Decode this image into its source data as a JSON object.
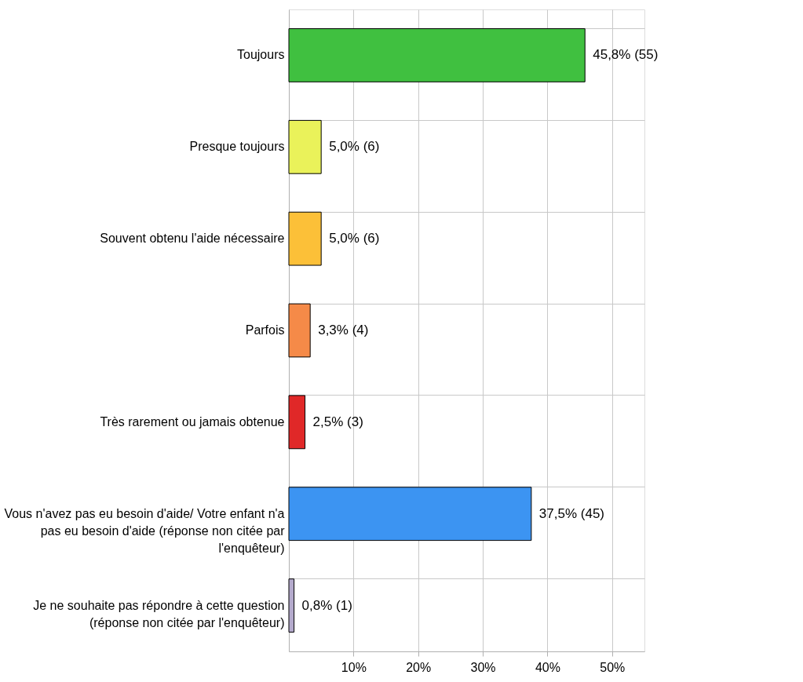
{
  "chart_data": {
    "type": "bar",
    "orientation": "horizontal",
    "categories": [
      "Toujours",
      "Presque toujours",
      "Souvent obtenu l'aide nécessaire",
      "Parfois",
      "Très rarement ou jamais obtenue",
      "Vous n'avez pas eu besoin d'aide/ Votre enfant n'a pas eu besoin d'aide (réponse non citée par l'enquêteur)",
      "Je ne souhaite pas répondre à cette question (réponse non citée par l'enquêteur)"
    ],
    "values": [
      45.8,
      5.0,
      5.0,
      3.3,
      2.5,
      37.5,
      0.8
    ],
    "colors": [
      "#40c040",
      "#eaf25a",
      "#fcc038",
      "#f58a48",
      "#e02828",
      "#3c94f2",
      "#b4aacc"
    ],
    "value_labels": [
      "45,8% (55)",
      "5,0% (6)",
      "5,0% (6)",
      "3,3% (4)",
      "2,5% (3)",
      "37,5% (45)",
      "0,8% (1)"
    ],
    "xlim": [
      0,
      55
    ],
    "xticks": [
      {
        "value": 10,
        "label": "10%"
      },
      {
        "value": 20,
        "label": "20%"
      },
      {
        "value": 30,
        "label": "30%"
      },
      {
        "value": 40,
        "label": "40%"
      },
      {
        "value": 50,
        "label": "50%"
      }
    ],
    "grid": true,
    "legend": false
  }
}
